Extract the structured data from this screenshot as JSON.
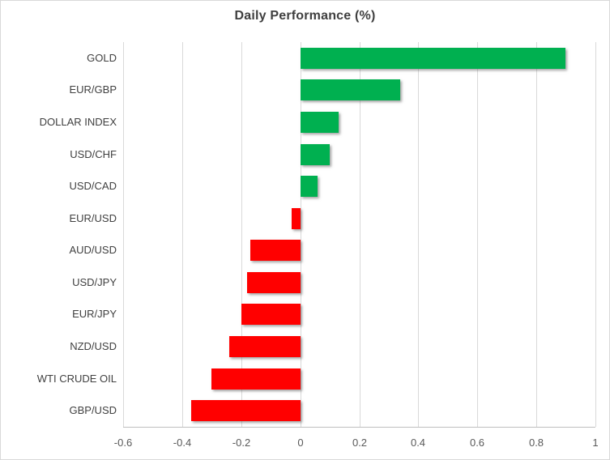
{
  "window": {
    "background": "#ffffff",
    "border_color": "#d9d9d9"
  },
  "chart_data": {
    "type": "bar",
    "orientation": "horizontal",
    "title": "Daily Performance (%)",
    "categories": [
      "GOLD",
      "EUR/GBP",
      "DOLLAR INDEX",
      "USD/CHF",
      "USD/CAD",
      "EUR/USD",
      "AUD/USD",
      "USD/JPY",
      "EUR/JPY",
      "NZD/USD",
      "WTI CRUDE OIL",
      "GBP/USD"
    ],
    "values": [
      0.9,
      0.34,
      0.13,
      0.1,
      0.06,
      -0.03,
      -0.17,
      -0.18,
      -0.2,
      -0.24,
      -0.3,
      -0.37
    ],
    "xlabel": "",
    "ylabel": "",
    "xlim": [
      -0.6,
      1
    ],
    "xticks": [
      -0.6,
      -0.4,
      -0.2,
      0,
      0.2,
      0.4,
      0.6,
      0.8,
      1
    ],
    "xtick_labels": [
      "-0.6",
      "-0.4",
      "-0.2",
      "0",
      "0.2",
      "0.4",
      "0.6",
      "0.8",
      "1"
    ],
    "grid": true,
    "legend": "none",
    "colors": {
      "positive": "#00b050",
      "negative": "#ff0000",
      "gridline": "#d9d9d9",
      "axis_line": "#bfbfbf",
      "title_text": "#3f3f3f",
      "category_text": "#404040",
      "tick_text": "#595959"
    }
  }
}
